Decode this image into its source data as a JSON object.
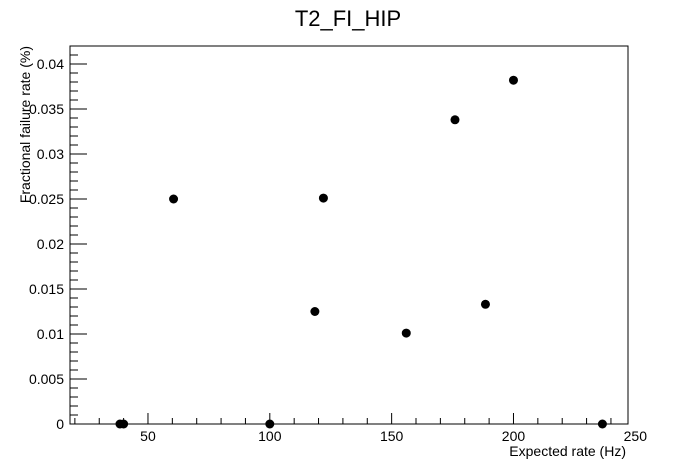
{
  "chart_data": {
    "type": "scatter",
    "title": "T2_FI_HIP",
    "xlabel": "Expected rate (Hz)",
    "ylabel": "Fractional failure rate (%)",
    "xlim": [
      18,
      247
    ],
    "ylim": [
      0,
      0.042
    ],
    "x_ticks": [
      50,
      100,
      150,
      200,
      250
    ],
    "x_tick_labels": [
      "50",
      "100",
      "150",
      "200",
      "250"
    ],
    "y_ticks": [
      0,
      0.005,
      0.01,
      0.015,
      0.02,
      0.025,
      0.03,
      0.035,
      0.04
    ],
    "y_tick_labels": [
      "0",
      "0.005",
      "0.01",
      "0.015",
      "0.02",
      "0.025",
      "0.03",
      "0.035",
      "0.04"
    ],
    "grid": false,
    "legend": "none",
    "marker_color": "#000000",
    "series": [
      {
        "x": [
          38.5,
          40,
          60.5,
          100,
          118.5,
          122,
          156,
          176,
          188.5,
          200,
          236.5
        ],
        "y": [
          0,
          0,
          0.025,
          0,
          0.0125,
          0.0251,
          0.0101,
          0.0338,
          0.0133,
          0.0382,
          0
        ]
      }
    ]
  }
}
